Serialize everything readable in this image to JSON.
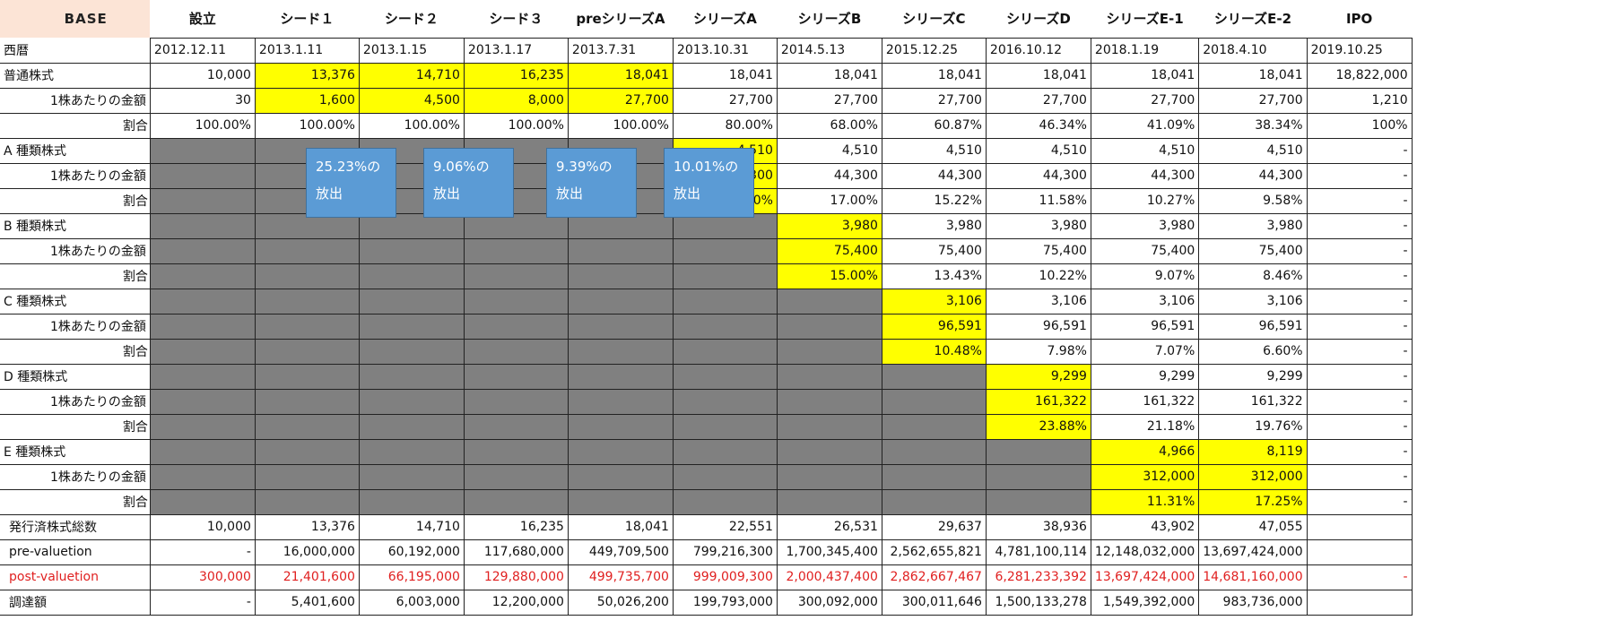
{
  "logo": "BASE",
  "headers": [
    "設立",
    "シード１",
    "シード２",
    "シード３",
    "preシリーズA",
    "シリーズA",
    "シリーズB",
    "シリーズC",
    "シリーズD",
    "シリーズE-1",
    "シリーズE-2",
    "IPO"
  ],
  "date_label": "西暦",
  "dates": [
    "2012.12.11",
    "2013.1.11",
    "2013.1.15",
    "2013.1.17",
    "2013.7.31",
    "2013.10.31",
    "2014.5.13",
    "2015.12.25",
    "2016.10.12",
    "2018.1.19",
    "2018.4.10",
    "2019.10.25"
  ],
  "rows": [
    {
      "label": "普通株式",
      "type": "main",
      "values": [
        "10,000",
        "13,376",
        "14,710",
        "16,235",
        "18,041",
        "18,041",
        "18,041",
        "18,041",
        "18,041",
        "18,041",
        "18,041",
        "18,822,000"
      ],
      "highlight": [
        1,
        2,
        3,
        4
      ]
    },
    {
      "label": "1株あたりの金額",
      "type": "sub",
      "values": [
        "30",
        "1,600",
        "4,500",
        "8,000",
        "27,700",
        "27,700",
        "27,700",
        "27,700",
        "27,700",
        "27,700",
        "27,700",
        "1,210"
      ],
      "highlight": [
        1,
        2,
        3,
        4
      ]
    },
    {
      "label": "割合",
      "type": "ratio",
      "values": [
        "100.00%",
        "100.00%",
        "100.00%",
        "100.00%",
        "100.00%",
        "80.00%",
        "68.00%",
        "60.87%",
        "46.34%",
        "41.09%",
        "38.34%",
        "100%"
      ],
      "highlight": []
    },
    {
      "label": "A 種類株式",
      "type": "main",
      "gray_until": 5,
      "values": [
        "",
        "",
        "",
        "",
        "",
        "4,510",
        "4,510",
        "4,510",
        "4,510",
        "4,510",
        "4,510",
        "-"
      ],
      "highlight": [
        5
      ]
    },
    {
      "label": "1株あたりの金額",
      "type": "sub",
      "gray_until": 5,
      "values": [
        "",
        "",
        "",
        "",
        "",
        "44,300",
        "44,300",
        "44,300",
        "44,300",
        "44,300",
        "44,300",
        "-"
      ],
      "highlight": [
        5
      ]
    },
    {
      "label": "割合",
      "type": "ratio",
      "gray_until": 5,
      "values": [
        "",
        "",
        "",
        "",
        "",
        "20.00%",
        "17.00%",
        "15.22%",
        "11.58%",
        "10.27%",
        "9.58%",
        "-"
      ],
      "highlight": [
        5
      ]
    },
    {
      "label": "B 種類株式",
      "type": "main",
      "gray_until": 6,
      "values": [
        "",
        "",
        "",
        "",
        "",
        "",
        "3,980",
        "3,980",
        "3,980",
        "3,980",
        "3,980",
        "-"
      ],
      "highlight": [
        6
      ]
    },
    {
      "label": "1株あたりの金額",
      "type": "sub",
      "gray_until": 6,
      "values": [
        "",
        "",
        "",
        "",
        "",
        "",
        "75,400",
        "75,400",
        "75,400",
        "75,400",
        "75,400",
        "-"
      ],
      "highlight": [
        6
      ]
    },
    {
      "label": "割合",
      "type": "ratio",
      "gray_until": 6,
      "values": [
        "",
        "",
        "",
        "",
        "",
        "",
        "15.00%",
        "13.43%",
        "10.22%",
        "9.07%",
        "8.46%",
        "-"
      ],
      "highlight": [
        6
      ]
    },
    {
      "label": "C 種類株式",
      "type": "main",
      "gray_until": 7,
      "values": [
        "",
        "",
        "",
        "",
        "",
        "",
        "",
        "3,106",
        "3,106",
        "3,106",
        "3,106",
        "-"
      ],
      "highlight": [
        7
      ]
    },
    {
      "label": "1株あたりの金額",
      "type": "sub",
      "gray_until": 7,
      "values": [
        "",
        "",
        "",
        "",
        "",
        "",
        "",
        "96,591",
        "96,591",
        "96,591",
        "96,591",
        "-"
      ],
      "highlight": [
        7
      ]
    },
    {
      "label": "割合",
      "type": "ratio",
      "gray_until": 7,
      "values": [
        "",
        "",
        "",
        "",
        "",
        "",
        "",
        "10.48%",
        "7.98%",
        "7.07%",
        "6.60%",
        "-"
      ],
      "highlight": [
        7
      ]
    },
    {
      "label": "D 種類株式",
      "type": "main",
      "gray_until": 8,
      "values": [
        "",
        "",
        "",
        "",
        "",
        "",
        "",
        "",
        "9,299",
        "9,299",
        "9,299",
        "-"
      ],
      "highlight": [
        8
      ]
    },
    {
      "label": "1株あたりの金額",
      "type": "sub",
      "gray_until": 8,
      "values": [
        "",
        "",
        "",
        "",
        "",
        "",
        "",
        "",
        "161,322",
        "161,322",
        "161,322",
        "-"
      ],
      "highlight": [
        8
      ]
    },
    {
      "label": "割合",
      "type": "ratio",
      "gray_until": 8,
      "values": [
        "",
        "",
        "",
        "",
        "",
        "",
        "",
        "",
        "23.88%",
        "21.18%",
        "19.76%",
        "-"
      ],
      "highlight": [
        8
      ]
    },
    {
      "label": "E 種類株式",
      "type": "main",
      "gray_until": 9,
      "values": [
        "",
        "",
        "",
        "",
        "",
        "",
        "",
        "",
        "",
        "4,966",
        "8,119",
        "-"
      ],
      "highlight": [
        9,
        10
      ]
    },
    {
      "label": "1株あたりの金額",
      "type": "sub",
      "gray_until": 9,
      "values": [
        "",
        "",
        "",
        "",
        "",
        "",
        "",
        "",
        "",
        "312,000",
        "312,000",
        "-"
      ],
      "highlight": [
        9,
        10
      ]
    },
    {
      "label": "割合",
      "type": "ratio",
      "gray_until": 9,
      "values": [
        "",
        "",
        "",
        "",
        "",
        "",
        "",
        "",
        "",
        "11.31%",
        "17.25%",
        "-"
      ],
      "highlight": [
        9,
        10
      ]
    },
    {
      "label": "発行済株式総数",
      "type": "wide",
      "values": [
        "10,000",
        "13,376",
        "14,710",
        "16,235",
        "18,041",
        "22,551",
        "26,531",
        "29,637",
        "38,936",
        "43,902",
        "47,055",
        ""
      ],
      "highlight": []
    },
    {
      "label": "pre-valuetion",
      "type": "wide",
      "values": [
        "-",
        "16,000,000",
        "60,192,000",
        "117,680,000",
        "449,709,500",
        "799,216,300",
        "1,700,345,400",
        "2,562,655,821",
        "4,781,100,114",
        "12,148,032,000",
        "13,697,424,000",
        ""
      ],
      "highlight": []
    },
    {
      "label": "post-valuetion",
      "type": "wide",
      "red": true,
      "values": [
        "300,000",
        "21,401,600",
        "66,195,000",
        "129,880,000",
        "499,735,700",
        "999,009,300",
        "2,000,437,400",
        "2,862,667,467",
        "6,281,233,392",
        "13,697,424,000",
        "14,681,160,000",
        "-"
      ],
      "highlight": []
    },
    {
      "label": "調達額",
      "type": "wide",
      "values": [
        "-",
        "5,401,600",
        "6,003,000",
        "12,200,000",
        "50,026,200",
        "199,793,000",
        "300,092,000",
        "300,011,646",
        "1,500,133,278",
        "1,549,392,000",
        "983,736,000",
        ""
      ],
      "highlight": []
    }
  ],
  "annotations": [
    {
      "line1": "25.23%の",
      "line2": "放出"
    },
    {
      "line1": "9.06%の",
      "line2": "放出"
    },
    {
      "line1": "9.39%の",
      "line2": "放出"
    },
    {
      "line1": "10.01%の",
      "line2": "放出"
    }
  ],
  "colors": {
    "highlight": "#ffff00",
    "gray": "#808080",
    "logo_bg": "#fce4d6",
    "annotation": "#5b9bd5",
    "red_text": "#e02020"
  }
}
